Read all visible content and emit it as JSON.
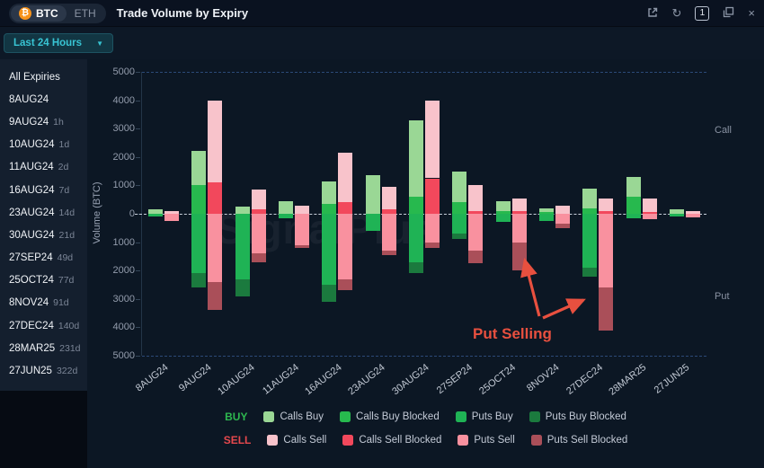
{
  "header": {
    "tabs": [
      {
        "label": "BTC",
        "active": true
      },
      {
        "label": "ETH",
        "active": false
      }
    ],
    "title": "Trade Volume by Expiry",
    "page_indicator": "1",
    "icons": [
      "bitcoin-icon",
      "popout-icon",
      "refresh-icon",
      "page-indicator",
      "duplicate-icon",
      "close-icon"
    ]
  },
  "toolbar": {
    "time_range": "Last 24 Hours",
    "dropdown_icon": "chevron-down-icon"
  },
  "sidebar": {
    "items": [
      {
        "label": "All Expiries",
        "suffix": ""
      },
      {
        "label": "8AUG24",
        "suffix": ""
      },
      {
        "label": "9AUG24",
        "suffix": "1h"
      },
      {
        "label": "10AUG24",
        "suffix": "1d"
      },
      {
        "label": "11AUG24",
        "suffix": "2d"
      },
      {
        "label": "16AUG24",
        "suffix": "7d"
      },
      {
        "label": "23AUG24",
        "suffix": "14d"
      },
      {
        "label": "30AUG24",
        "suffix": "21d"
      },
      {
        "label": "27SEP24",
        "suffix": "49d"
      },
      {
        "label": "25OCT24",
        "suffix": "77d"
      },
      {
        "label": "8NOV24",
        "suffix": "91d"
      },
      {
        "label": "27DEC24",
        "suffix": "140d"
      },
      {
        "label": "28MAR25",
        "suffix": "231d"
      },
      {
        "label": "27JUN25",
        "suffix": "322d"
      }
    ]
  },
  "watermark": "SignalPlus",
  "chart_data": {
    "type": "bar",
    "stacked": true,
    "title": "Trade Volume by Expiry",
    "ylabel": "Volume (BTC)",
    "ylim": [
      -5000,
      5000
    ],
    "ytick_interval": 1000,
    "ytick_labels": [
      "5000",
      "4000",
      "3000",
      "2000",
      "1000",
      "0",
      "1000",
      "2000",
      "3000",
      "4000",
      "5000"
    ],
    "right_labels": {
      "call": "Call",
      "put": "Put"
    },
    "categories": [
      "8AUG24",
      "9AUG24",
      "10AUG24",
      "11AUG24",
      "16AUG24",
      "23AUG24",
      "30AUG24",
      "27SEP24",
      "25OCT24",
      "8NOV24",
      "27DEC24",
      "28MAR25",
      "27JUN25"
    ],
    "series": [
      {
        "name": "Calls Buy",
        "group": "buy",
        "side": "call",
        "color": "#9ad795",
        "values": [
          150,
          1200,
          250,
          450,
          800,
          1350,
          2700,
          1100,
          350,
          150,
          700,
          700,
          150
        ]
      },
      {
        "name": "Calls Buy Blocked",
        "group": "buy",
        "side": "call",
        "color": "#27b94e",
        "values": [
          0,
          1000,
          0,
          0,
          350,
          0,
          600,
          400,
          100,
          50,
          200,
          600,
          0
        ]
      },
      {
        "name": "Puts Buy",
        "group": "buy",
        "side": "put",
        "color": "#1fb355",
        "values": [
          100,
          2100,
          2300,
          150,
          2500,
          600,
          1700,
          700,
          300,
          250,
          1900,
          150,
          80
        ]
      },
      {
        "name": "Puts Buy Blocked",
        "group": "buy",
        "side": "put",
        "color": "#1b7a3e",
        "values": [
          0,
          500,
          600,
          0,
          600,
          0,
          400,
          200,
          0,
          0,
          300,
          0,
          0
        ]
      },
      {
        "name": "Calls Sell",
        "group": "sell",
        "side": "call",
        "color": "#f8c3cb",
        "values": [
          100,
          2900,
          700,
          300,
          1750,
          800,
          2750,
          900,
          450,
          300,
          450,
          500,
          100
        ]
      },
      {
        "name": "Calls Sell Blocked",
        "group": "sell",
        "side": "call",
        "color": "#f2485c",
        "values": [
          0,
          1100,
          150,
          0,
          400,
          150,
          1250,
          100,
          100,
          0,
          100,
          50,
          0
        ]
      },
      {
        "name": "Puts Sell",
        "group": "sell",
        "side": "put",
        "color": "#f9919f",
        "values": [
          250,
          2400,
          1400,
          1100,
          2300,
          1300,
          1000,
          1300,
          1000,
          350,
          2600,
          200,
          120
        ]
      },
      {
        "name": "Puts Sell Blocked",
        "group": "sell",
        "side": "put",
        "color": "#aa4f59",
        "values": [
          0,
          1000,
          300,
          100,
          400,
          150,
          200,
          450,
          1000,
          150,
          1500,
          0,
          0
        ]
      }
    ],
    "annotation": {
      "text": "Put Selling",
      "color": "#e8503f"
    },
    "legend": {
      "buy_label": "BUY",
      "sell_label": "SELL",
      "buy_color": "#2eb850",
      "sell_color": "#e5484d"
    }
  }
}
